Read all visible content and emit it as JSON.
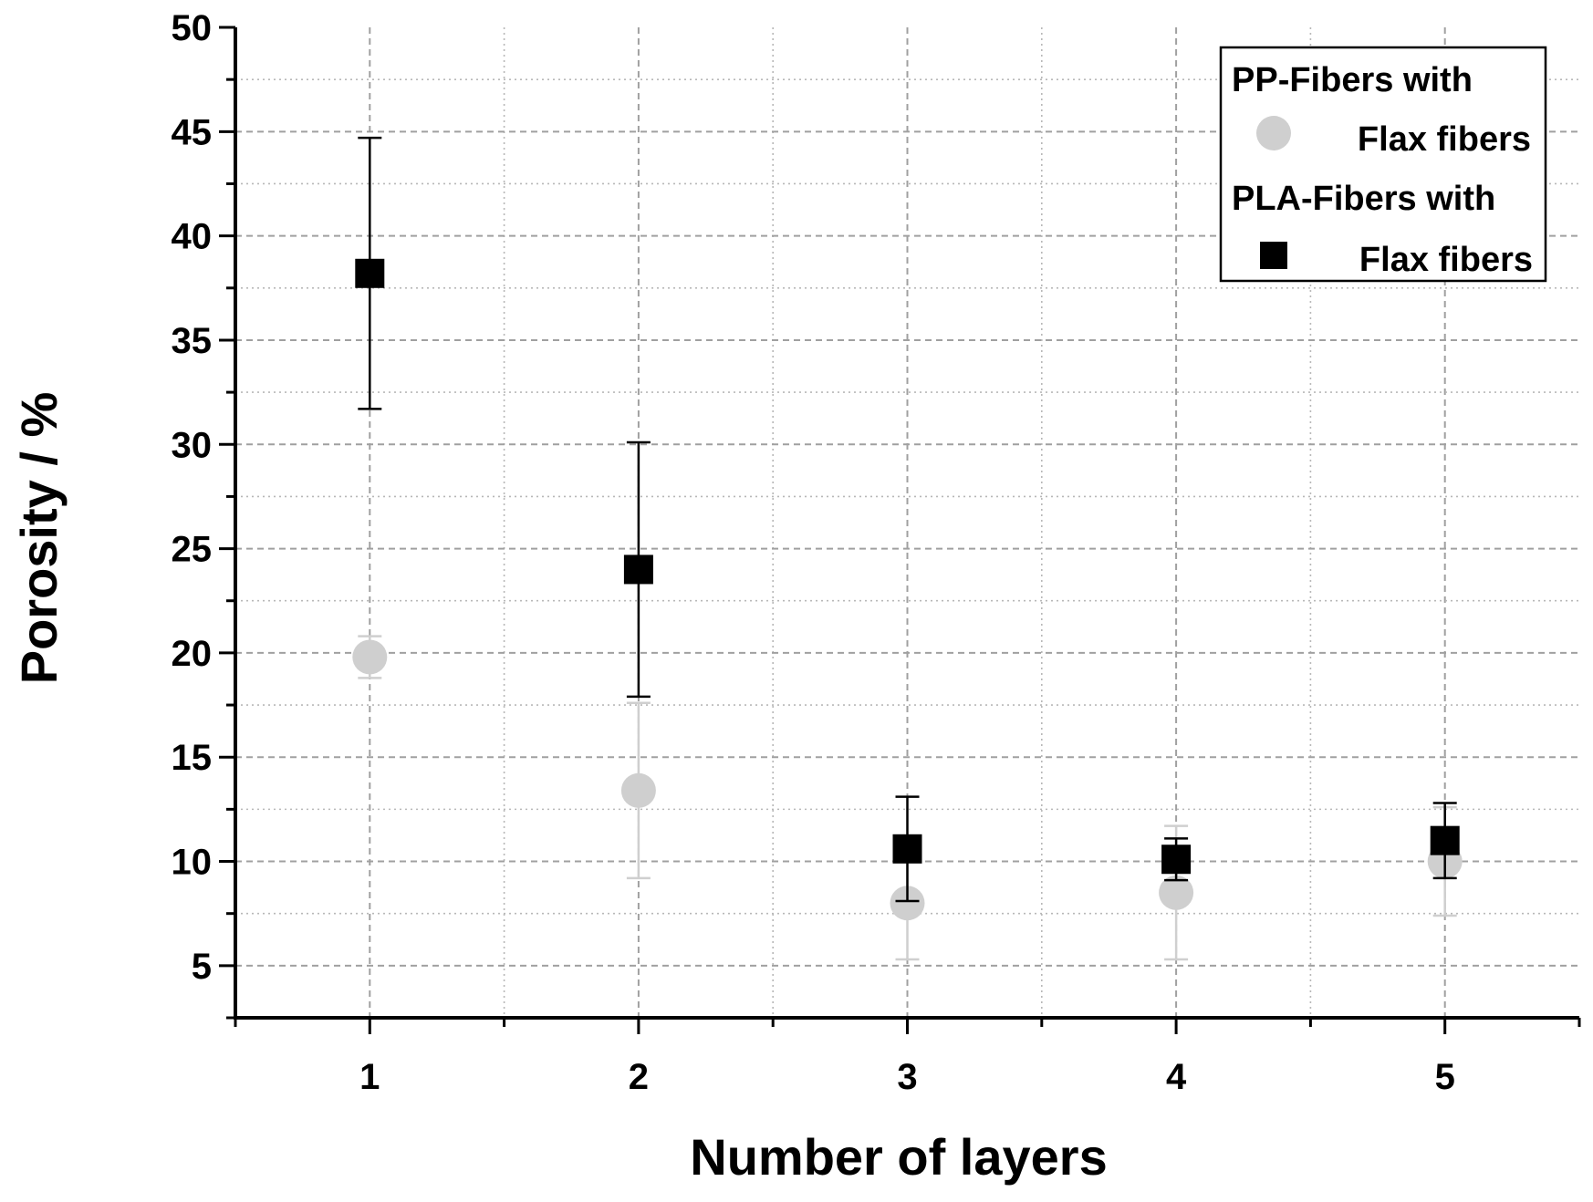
{
  "chart_data": {
    "type": "scatter",
    "title": "",
    "xlabel": "Number of layers",
    "ylabel": "Porosity / %",
    "xlim": [
      0.5,
      5.5
    ],
    "ylim": [
      2.5,
      50
    ],
    "x_ticks": [
      1,
      2,
      3,
      4,
      5
    ],
    "y_ticks": [
      5,
      10,
      15,
      20,
      25,
      30,
      35,
      40,
      45,
      50
    ],
    "grid": true,
    "legend_position": "top-right",
    "legend_groups": [
      {
        "heading": "PP-Fibers with",
        "entry": "Flax fibers"
      },
      {
        "heading": "PLA-Fibers with",
        "entry": "Flax fibers"
      }
    ],
    "series": [
      {
        "marker": "circle",
        "color": "#cfcfcf",
        "x": [
          1,
          2,
          3,
          4,
          5
        ],
        "y": [
          19.8,
          13.4,
          8.0,
          8.5,
          10.0
        ],
        "error": [
          1.0,
          4.2,
          2.7,
          3.2,
          2.6
        ]
      },
      {
        "marker": "square",
        "color": "#000000",
        "x": [
          1,
          2,
          3,
          4,
          5
        ],
        "y": [
          38.2,
          24.0,
          10.6,
          10.1,
          11.0
        ],
        "error": [
          6.5,
          6.1,
          2.5,
          1.0,
          1.8
        ]
      }
    ]
  }
}
